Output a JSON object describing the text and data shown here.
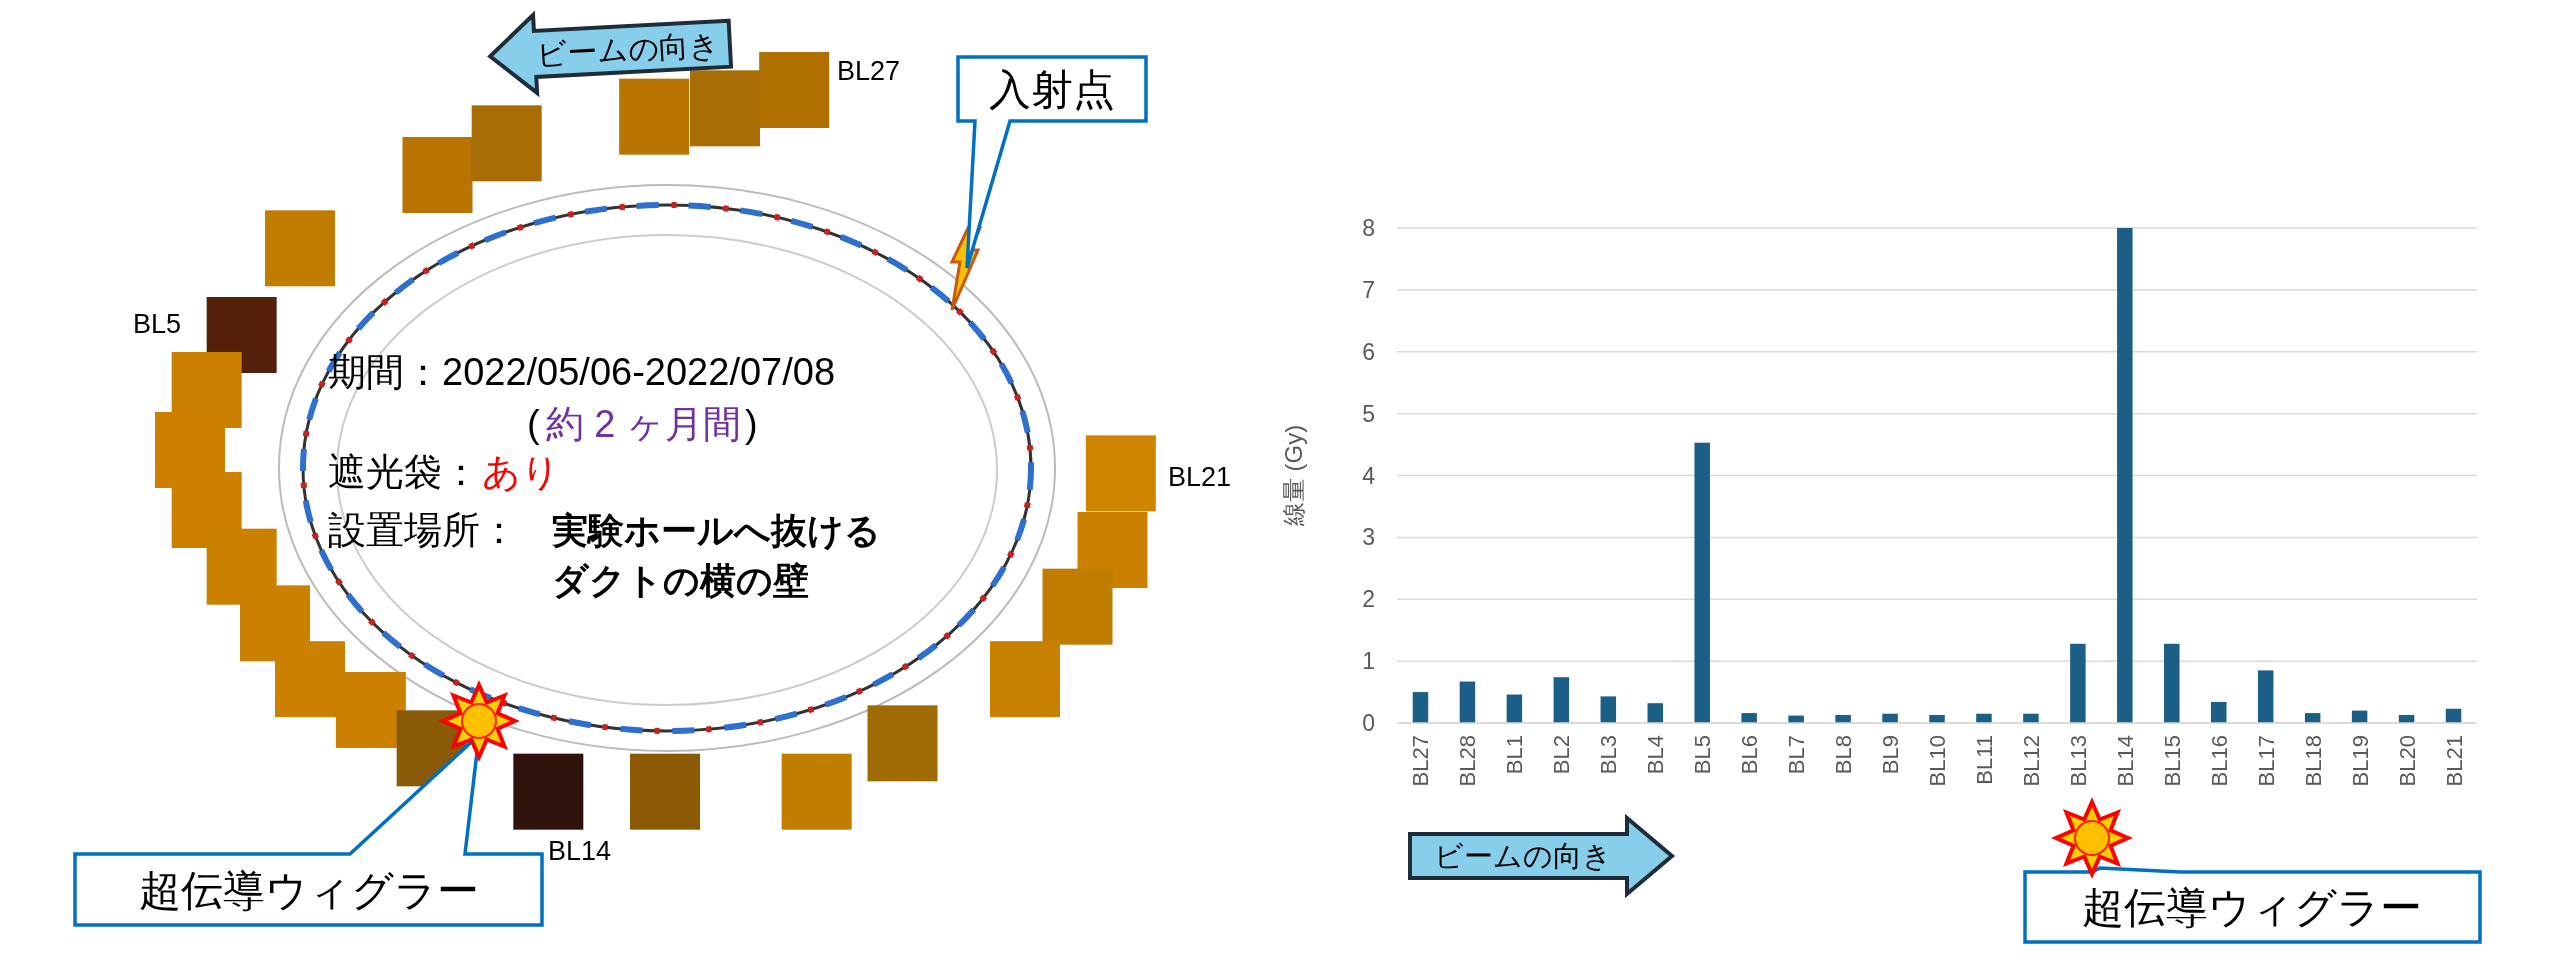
{
  "chart_data": [
    {
      "type": "other",
      "annotations": [
        "期間：2022/05/06-2022/07/08",
        "(",
        "約 2 ヶ月間",
        ")",
        "遮光袋：",
        "あり",
        "設置場所：",
        "実験ホールへ抜ける",
        "ダクトの横の壁",
        "BL27",
        "BL5",
        "BL21",
        "BL14",
        "入射点",
        "超伝導ウィグラー",
        "ビームの向き"
      ]
    },
    {
      "type": "bar",
      "ylabel": "線量 (Gy)",
      "categories": [
        "BL27",
        "BL28",
        "BL1",
        "BL2",
        "BL3",
        "BL4",
        "BL5",
        "BL6",
        "BL7",
        "BL8",
        "BL9",
        "BL10",
        "BL11",
        "BL12",
        "BL13",
        "BL14",
        "BL15",
        "BL16",
        "BL17",
        "BL18",
        "BL19",
        "BL20",
        "BL21"
      ],
      "values": [
        0.5,
        0.67,
        0.46,
        0.74,
        0.43,
        0.32,
        4.53,
        0.16,
        0.12,
        0.13,
        0.15,
        0.13,
        0.15,
        0.15,
        1.28,
        8,
        1.28,
        0.34,
        0.85,
        0.16,
        0.2,
        0.13,
        0.23
      ],
      "color": "#1b5f86",
      "ylim": [
        0,
        8
      ],
      "yticks": [
        0,
        1,
        2,
        3,
        4,
        5,
        6,
        7,
        8
      ],
      "grid": "y",
      "annotations": [
        "ビームの向き",
        "超伝導ウィグラー"
      ]
    }
  ]
}
